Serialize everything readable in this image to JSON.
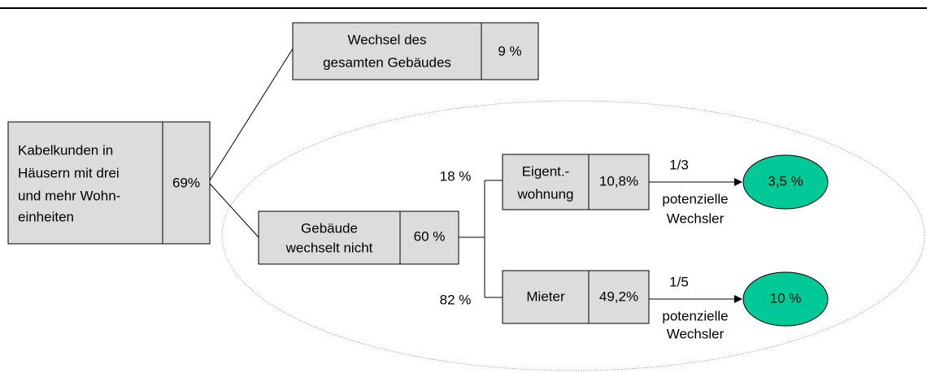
{
  "root": {
    "lines": [
      "Kabelkunden in",
      "Häusern mit drei",
      "und mehr Wohn-",
      "einheiten"
    ],
    "value": "69%"
  },
  "top": {
    "lines": [
      "Wechsel des",
      "gesamten Gebäudes"
    ],
    "value": "9 %"
  },
  "middle": {
    "lines": [
      "Gebäude",
      "wechselt nicht"
    ],
    "value": "60 %"
  },
  "owner": {
    "share": "18 %",
    "lines": [
      "Eigent.-",
      "wohnung"
    ],
    "value": "10,8%",
    "ratio": "1/3",
    "note": [
      "potenzielle",
      "Wechsler"
    ],
    "result": "3,5 %"
  },
  "tenant": {
    "share": "82 %",
    "lines": [
      "Mieter"
    ],
    "value": "49,2%",
    "ratio": "1/5",
    "note": [
      "potenzielle",
      "Wechsler"
    ],
    "result": "10 %"
  }
}
